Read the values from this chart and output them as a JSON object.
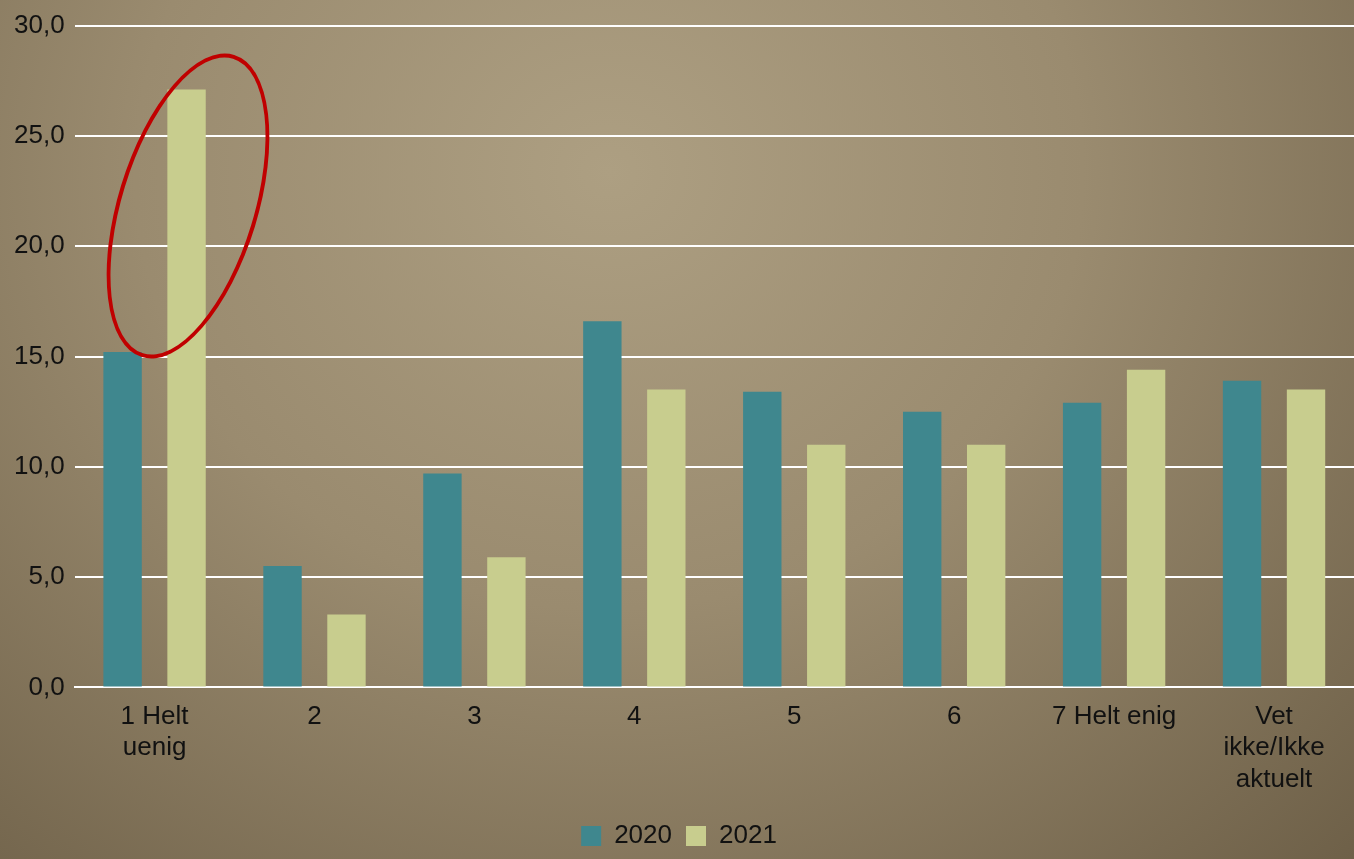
{
  "chart_data": {
    "type": "bar",
    "categories": [
      "1 Helt uenig",
      "2",
      "3",
      "4",
      "5",
      "6",
      "7 Helt enig",
      "Vet ikke/Ikke aktuelt"
    ],
    "series": [
      {
        "name": "2020",
        "color": "#3f878e",
        "values": [
          15.2,
          5.5,
          9.7,
          16.6,
          13.4,
          12.5,
          12.9,
          13.9
        ]
      },
      {
        "name": "2021",
        "color": "#c8cd8e",
        "values": [
          27.1,
          3.3,
          5.9,
          13.5,
          11.0,
          11.0,
          14.4,
          13.5
        ]
      }
    ],
    "ylim": [
      0,
      30
    ],
    "yticks": [
      {
        "value": 0,
        "label": "0,0"
      },
      {
        "value": 5,
        "label": "5,0"
      },
      {
        "value": 10,
        "label": "10,0"
      },
      {
        "value": 15,
        "label": "15,0"
      },
      {
        "value": 20,
        "label": "20,0"
      },
      {
        "value": 25,
        "label": "25,0"
      },
      {
        "value": 30,
        "label": "30,0"
      }
    ],
    "grid": "y",
    "legend": "bottom"
  }
}
